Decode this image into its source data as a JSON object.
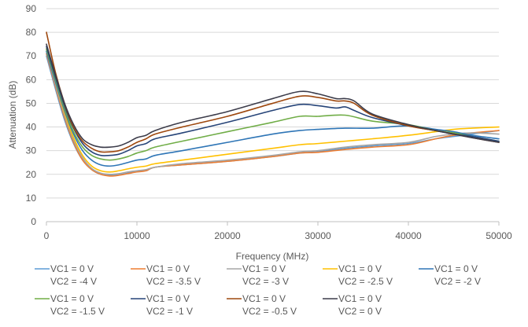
{
  "chart_data": {
    "type": "line",
    "title": "",
    "xlabel": "Frequency (MHz)",
    "ylabel": "Attenuation (dB)",
    "xlim": [
      0,
      50000
    ],
    "ylim": [
      0,
      90
    ],
    "x_ticks": [
      0,
      10000,
      20000,
      30000,
      40000,
      50000
    ],
    "y_ticks": [
      0,
      10,
      20,
      30,
      40,
      50,
      60,
      70,
      80,
      90
    ],
    "grid": "horizontal",
    "legend_position": "bottom",
    "series": [
      {
        "name": "VC1 = 0 V\nVC2 = -4 V",
        "color": "#5B9BD5",
        "x": [
          0,
          1000,
          2000,
          3000,
          4000,
          5000,
          6000,
          7000,
          8000,
          9000,
          10000,
          11000,
          12000,
          15000,
          20000,
          25000,
          28000,
          30000,
          33000,
          36000,
          40000,
          43000,
          45000,
          47000,
          50000
        ],
        "y": [
          70,
          56,
          43,
          33,
          26,
          22,
          20,
          19.5,
          19.8,
          20.5,
          21.5,
          21.5,
          23,
          24,
          25.5,
          27.5,
          29,
          29.5,
          31,
          32,
          33,
          35,
          36,
          37,
          38.5
        ]
      },
      {
        "name": "VC1 = 0 V\nVC2 = -3.5 V",
        "color": "#ED7D31",
        "x": [
          0,
          1000,
          2000,
          3000,
          4000,
          5000,
          6000,
          7000,
          8000,
          9000,
          10000,
          11000,
          12000,
          15000,
          20000,
          25000,
          28000,
          30000,
          33000,
          36000,
          40000,
          43000,
          45000,
          47000,
          50000
        ],
        "y": [
          71,
          57,
          44,
          33.5,
          26,
          22,
          20,
          19.3,
          19.6,
          20.3,
          21,
          21.5,
          23,
          24,
          25.5,
          27.5,
          29,
          29.3,
          30.5,
          31.5,
          32.5,
          35,
          36.5,
          37.5,
          38.5
        ]
      },
      {
        "name": "VC1 = 0 V\nVC2 = -3 V",
        "color": "#A5A5A5",
        "x": [
          0,
          1000,
          2000,
          3000,
          4000,
          5000,
          6000,
          7000,
          8000,
          9000,
          10000,
          11000,
          12000,
          15000,
          20000,
          25000,
          28000,
          30000,
          33000,
          36000,
          40000,
          43000,
          45000,
          47000,
          50000
        ],
        "y": [
          72,
          58,
          45,
          34.5,
          27,
          22.5,
          20.5,
          20,
          20.3,
          21,
          21.5,
          22,
          23,
          24.5,
          26,
          28,
          29.5,
          30,
          31.5,
          32.5,
          33.5,
          36,
          37,
          37.5,
          37
        ]
      },
      {
        "name": "VC1 = 0 V\nVC2 = -2.5 V",
        "color": "#FFC000",
        "x": [
          0,
          1000,
          2000,
          3000,
          4000,
          5000,
          6000,
          7000,
          8000,
          9000,
          10000,
          11000,
          12000,
          15000,
          20000,
          25000,
          28000,
          30000,
          33000,
          36000,
          40000,
          43000,
          45000,
          47000,
          50000
        ],
        "y": [
          73,
          59,
          46,
          35.5,
          28,
          23.5,
          21.5,
          21,
          21.5,
          22.3,
          23,
          23.5,
          24.5,
          26,
          28.5,
          31,
          32.5,
          33,
          34,
          35,
          36.5,
          38,
          39,
          39.5,
          40
        ]
      },
      {
        "name": "VC1 = 0 V\nVC2 = -2 V",
        "color": "#2E75B6",
        "x": [
          0,
          1000,
          2000,
          3000,
          4000,
          5000,
          6000,
          7000,
          8000,
          9000,
          10000,
          11000,
          12000,
          15000,
          20000,
          25000,
          28000,
          30000,
          33000,
          36000,
          40000,
          43000,
          45000,
          47000,
          50000
        ],
        "y": [
          72,
          59,
          47,
          37,
          30,
          26,
          24,
          23.5,
          24,
          25,
          26,
          26.5,
          28,
          30,
          33.5,
          37,
          38.5,
          39,
          39.5,
          39.5,
          40.5,
          39,
          38,
          36.5,
          35
        ]
      },
      {
        "name": "VC1 = 0 V\nVC2 = -1.5 V",
        "color": "#70AD47",
        "x": [
          0,
          1000,
          2000,
          3000,
          4000,
          5000,
          6000,
          7000,
          8000,
          9000,
          10000,
          11000,
          12000,
          15000,
          20000,
          25000,
          28000,
          30000,
          33000,
          36000,
          40000,
          43000,
          45000,
          47000,
          50000
        ],
        "y": [
          73,
          60,
          48,
          38,
          31.5,
          28,
          26.5,
          26,
          26.5,
          27.5,
          29,
          30,
          31.5,
          34,
          38,
          42,
          44.5,
          44.5,
          45,
          42.5,
          41,
          38.5,
          37.5,
          36,
          34
        ]
      },
      {
        "name": "VC1 = 0 V\nVC2 = -1 V",
        "color": "#264478",
        "x": [
          0,
          1000,
          2000,
          3000,
          4000,
          5000,
          6000,
          7000,
          8000,
          9000,
          10000,
          11000,
          12000,
          15000,
          20000,
          25000,
          28000,
          30000,
          32000,
          33000,
          34000,
          36000,
          40000,
          43000,
          45000,
          47000,
          50000
        ],
        "y": [
          74,
          61,
          49,
          39.5,
          33,
          29.5,
          28,
          28,
          28.5,
          30,
          32,
          33,
          35,
          37.5,
          42,
          47,
          49.5,
          49,
          48,
          48.5,
          47,
          44,
          40.5,
          38.5,
          37,
          36,
          34
        ]
      },
      {
        "name": "VC1 = 0 V\nVC2 = -0.5 V",
        "color": "#9E480E",
        "x": [
          0,
          1000,
          2000,
          3000,
          4000,
          5000,
          6000,
          7000,
          8000,
          9000,
          10000,
          11000,
          12000,
          15000,
          20000,
          25000,
          28000,
          30000,
          32000,
          33000,
          34000,
          36000,
          40000,
          43000,
          45000,
          47000,
          50000
        ],
        "y": [
          80,
          63,
          50,
          40,
          34,
          31,
          29.5,
          29.5,
          30,
          31.5,
          33.5,
          35,
          37,
          40,
          44.5,
          50,
          53,
          52.5,
          51,
          51,
          50,
          45,
          40.5,
          38.5,
          37,
          35.5,
          33.5
        ]
      },
      {
        "name": "VC1 = 0 V\nVC2 = 0 V",
        "color": "#3C3C4A",
        "x": [
          0,
          1000,
          2000,
          3000,
          4000,
          5000,
          6000,
          7000,
          8000,
          9000,
          10000,
          11000,
          12000,
          15000,
          20000,
          25000,
          28000,
          30000,
          32000,
          33000,
          34000,
          36000,
          40000,
          43000,
          45000,
          47000,
          50000
        ],
        "y": [
          75,
          62,
          50,
          41,
          35,
          32.5,
          31.5,
          31.5,
          32,
          33.5,
          35.5,
          36.5,
          38.5,
          42,
          46.5,
          52,
          55,
          54,
          52,
          52,
          51,
          45.5,
          41,
          38.5,
          37,
          35.5,
          33.5
        ]
      }
    ]
  }
}
